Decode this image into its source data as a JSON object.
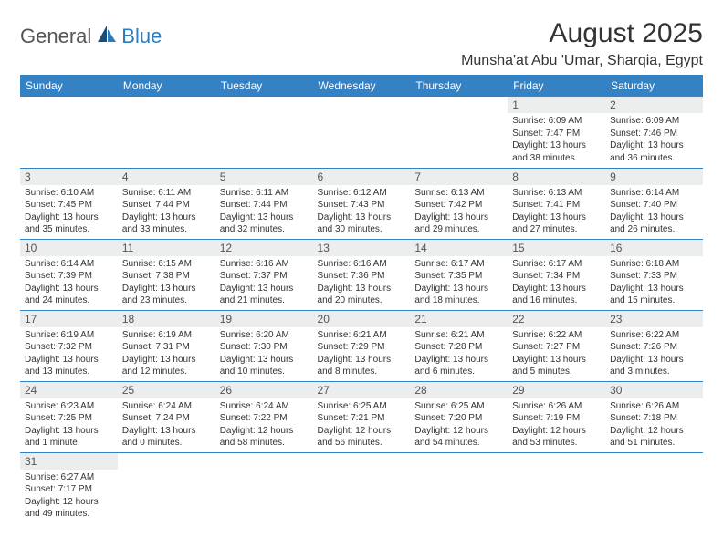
{
  "logo": {
    "general": "General",
    "blue": "Blue"
  },
  "title": "August 2025",
  "location": "Munsha'at Abu 'Umar, Sharqia, Egypt",
  "colors": {
    "header_bg": "#3481c4",
    "header_text": "#ffffff",
    "daynum_bg": "#eceded",
    "border": "#3481c4",
    "logo_blue": "#2b7bbd",
    "logo_dark": "#1a4e7a"
  },
  "weekday_headers": [
    "Sunday",
    "Monday",
    "Tuesday",
    "Wednesday",
    "Thursday",
    "Friday",
    "Saturday"
  ],
  "weeks": [
    [
      null,
      null,
      null,
      null,
      null,
      {
        "n": "1",
        "sr": "Sunrise: 6:09 AM",
        "ss": "Sunset: 7:47 PM",
        "dl": "Daylight: 13 hours and 38 minutes."
      },
      {
        "n": "2",
        "sr": "Sunrise: 6:09 AM",
        "ss": "Sunset: 7:46 PM",
        "dl": "Daylight: 13 hours and 36 minutes."
      }
    ],
    [
      {
        "n": "3",
        "sr": "Sunrise: 6:10 AM",
        "ss": "Sunset: 7:45 PM",
        "dl": "Daylight: 13 hours and 35 minutes."
      },
      {
        "n": "4",
        "sr": "Sunrise: 6:11 AM",
        "ss": "Sunset: 7:44 PM",
        "dl": "Daylight: 13 hours and 33 minutes."
      },
      {
        "n": "5",
        "sr": "Sunrise: 6:11 AM",
        "ss": "Sunset: 7:44 PM",
        "dl": "Daylight: 13 hours and 32 minutes."
      },
      {
        "n": "6",
        "sr": "Sunrise: 6:12 AM",
        "ss": "Sunset: 7:43 PM",
        "dl": "Daylight: 13 hours and 30 minutes."
      },
      {
        "n": "7",
        "sr": "Sunrise: 6:13 AM",
        "ss": "Sunset: 7:42 PM",
        "dl": "Daylight: 13 hours and 29 minutes."
      },
      {
        "n": "8",
        "sr": "Sunrise: 6:13 AM",
        "ss": "Sunset: 7:41 PM",
        "dl": "Daylight: 13 hours and 27 minutes."
      },
      {
        "n": "9",
        "sr": "Sunrise: 6:14 AM",
        "ss": "Sunset: 7:40 PM",
        "dl": "Daylight: 13 hours and 26 minutes."
      }
    ],
    [
      {
        "n": "10",
        "sr": "Sunrise: 6:14 AM",
        "ss": "Sunset: 7:39 PM",
        "dl": "Daylight: 13 hours and 24 minutes."
      },
      {
        "n": "11",
        "sr": "Sunrise: 6:15 AM",
        "ss": "Sunset: 7:38 PM",
        "dl": "Daylight: 13 hours and 23 minutes."
      },
      {
        "n": "12",
        "sr": "Sunrise: 6:16 AM",
        "ss": "Sunset: 7:37 PM",
        "dl": "Daylight: 13 hours and 21 minutes."
      },
      {
        "n": "13",
        "sr": "Sunrise: 6:16 AM",
        "ss": "Sunset: 7:36 PM",
        "dl": "Daylight: 13 hours and 20 minutes."
      },
      {
        "n": "14",
        "sr": "Sunrise: 6:17 AM",
        "ss": "Sunset: 7:35 PM",
        "dl": "Daylight: 13 hours and 18 minutes."
      },
      {
        "n": "15",
        "sr": "Sunrise: 6:17 AM",
        "ss": "Sunset: 7:34 PM",
        "dl": "Daylight: 13 hours and 16 minutes."
      },
      {
        "n": "16",
        "sr": "Sunrise: 6:18 AM",
        "ss": "Sunset: 7:33 PM",
        "dl": "Daylight: 13 hours and 15 minutes."
      }
    ],
    [
      {
        "n": "17",
        "sr": "Sunrise: 6:19 AM",
        "ss": "Sunset: 7:32 PM",
        "dl": "Daylight: 13 hours and 13 minutes."
      },
      {
        "n": "18",
        "sr": "Sunrise: 6:19 AM",
        "ss": "Sunset: 7:31 PM",
        "dl": "Daylight: 13 hours and 12 minutes."
      },
      {
        "n": "19",
        "sr": "Sunrise: 6:20 AM",
        "ss": "Sunset: 7:30 PM",
        "dl": "Daylight: 13 hours and 10 minutes."
      },
      {
        "n": "20",
        "sr": "Sunrise: 6:21 AM",
        "ss": "Sunset: 7:29 PM",
        "dl": "Daylight: 13 hours and 8 minutes."
      },
      {
        "n": "21",
        "sr": "Sunrise: 6:21 AM",
        "ss": "Sunset: 7:28 PM",
        "dl": "Daylight: 13 hours and 6 minutes."
      },
      {
        "n": "22",
        "sr": "Sunrise: 6:22 AM",
        "ss": "Sunset: 7:27 PM",
        "dl": "Daylight: 13 hours and 5 minutes."
      },
      {
        "n": "23",
        "sr": "Sunrise: 6:22 AM",
        "ss": "Sunset: 7:26 PM",
        "dl": "Daylight: 13 hours and 3 minutes."
      }
    ],
    [
      {
        "n": "24",
        "sr": "Sunrise: 6:23 AM",
        "ss": "Sunset: 7:25 PM",
        "dl": "Daylight: 13 hours and 1 minute."
      },
      {
        "n": "25",
        "sr": "Sunrise: 6:24 AM",
        "ss": "Sunset: 7:24 PM",
        "dl": "Daylight: 13 hours and 0 minutes."
      },
      {
        "n": "26",
        "sr": "Sunrise: 6:24 AM",
        "ss": "Sunset: 7:22 PM",
        "dl": "Daylight: 12 hours and 58 minutes."
      },
      {
        "n": "27",
        "sr": "Sunrise: 6:25 AM",
        "ss": "Sunset: 7:21 PM",
        "dl": "Daylight: 12 hours and 56 minutes."
      },
      {
        "n": "28",
        "sr": "Sunrise: 6:25 AM",
        "ss": "Sunset: 7:20 PM",
        "dl": "Daylight: 12 hours and 54 minutes."
      },
      {
        "n": "29",
        "sr": "Sunrise: 6:26 AM",
        "ss": "Sunset: 7:19 PM",
        "dl": "Daylight: 12 hours and 53 minutes."
      },
      {
        "n": "30",
        "sr": "Sunrise: 6:26 AM",
        "ss": "Sunset: 7:18 PM",
        "dl": "Daylight: 12 hours and 51 minutes."
      }
    ],
    [
      {
        "n": "31",
        "sr": "Sunrise: 6:27 AM",
        "ss": "Sunset: 7:17 PM",
        "dl": "Daylight: 12 hours and 49 minutes."
      },
      null,
      null,
      null,
      null,
      null,
      null
    ]
  ]
}
